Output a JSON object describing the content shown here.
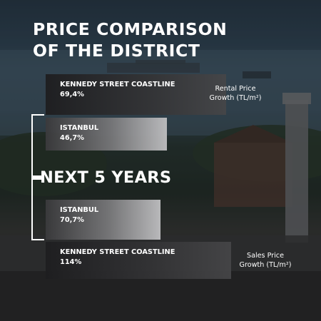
{
  "title_lines": [
    "PRICE COMPARISON",
    "OF THE DISTRICT"
  ],
  "middle_label": "NEXT 5 YEARS",
  "chart_data": [
    {
      "type": "bar",
      "orientation": "horizontal",
      "legend": [
        "Rental Price",
        "Growth (TL/m²)"
      ],
      "categories": [
        "KENNEDY STREET COASTLINE",
        "ISTANBUL"
      ],
      "values": [
        69.4,
        46.7
      ],
      "labels": [
        "69,4%",
        "46,7%"
      ],
      "unit": "%"
    },
    {
      "type": "bar",
      "orientation": "horizontal",
      "legend": [
        "Sales Price",
        "Growth (TL/m²)"
      ],
      "categories": [
        "ISTANBUL",
        "KENNEDY STREET COASTLINE"
      ],
      "values": [
        70.7,
        114
      ],
      "labels": [
        "70,7%",
        "114%"
      ],
      "unit": "%"
    }
  ]
}
